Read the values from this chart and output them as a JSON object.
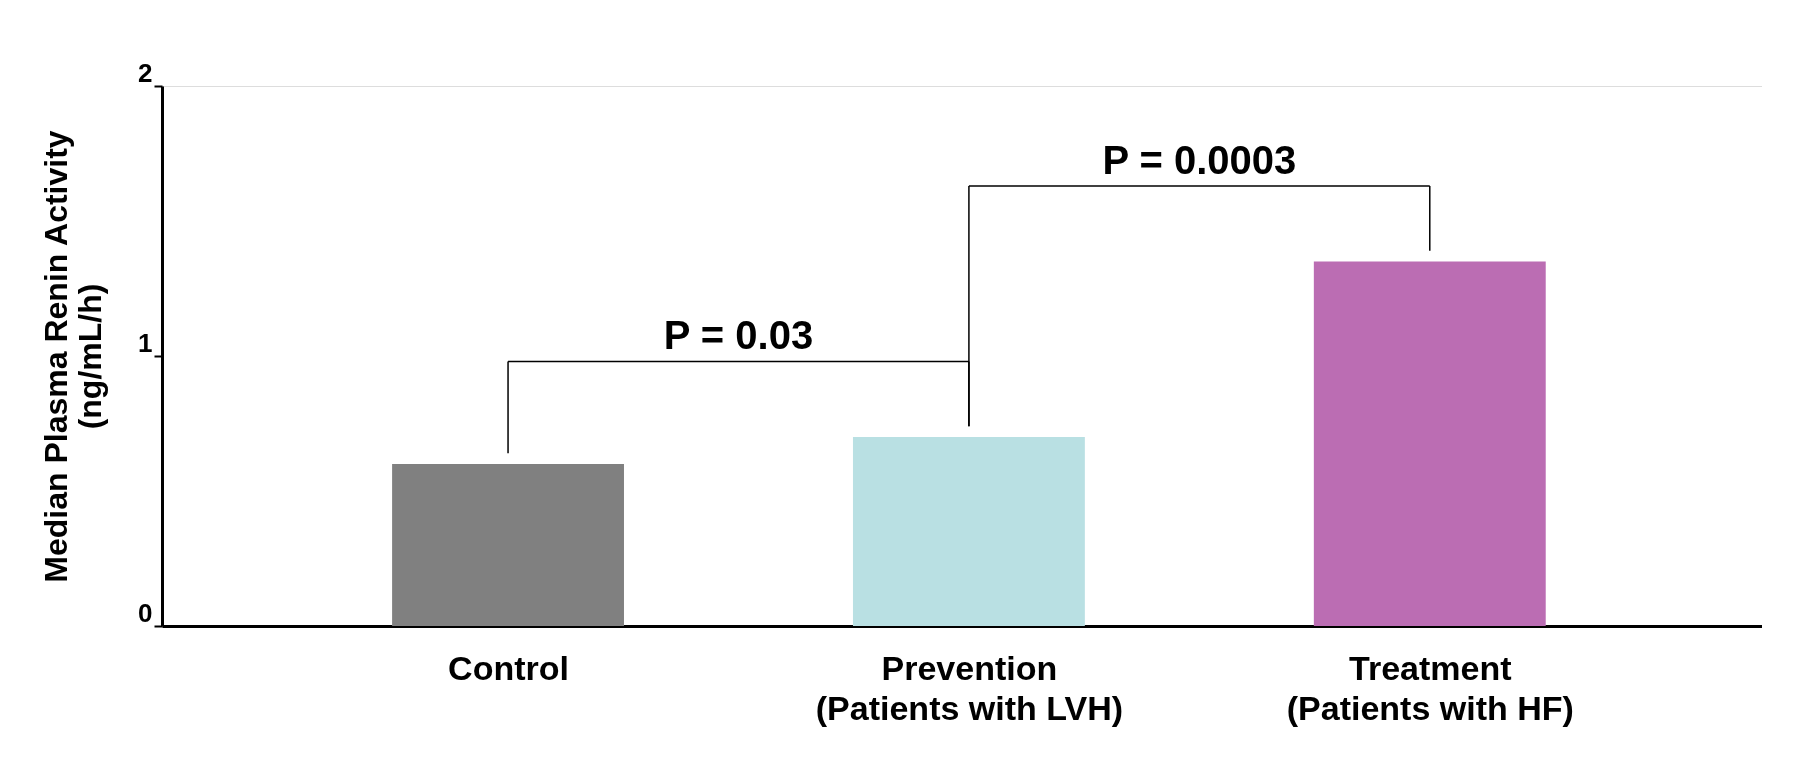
{
  "chart_data": {
    "type": "bar",
    "ylabel": "Median Plasma Renin Activity\n(ng/mL/h)",
    "categories": [
      "Control",
      "Prevention\n(Patients with LVH)",
      "Treatment\n(Patients with HF)"
    ],
    "values": [
      0.6,
      0.7,
      1.35
    ],
    "colors": [
      "#808080",
      "#b9e0e3",
      "#bb6db3"
    ],
    "ylim": [
      0,
      2
    ],
    "yticks": [
      0,
      1,
      2
    ],
    "grid": false,
    "annotations": [
      "P = 0.03",
      "P = 0.0003"
    ]
  }
}
